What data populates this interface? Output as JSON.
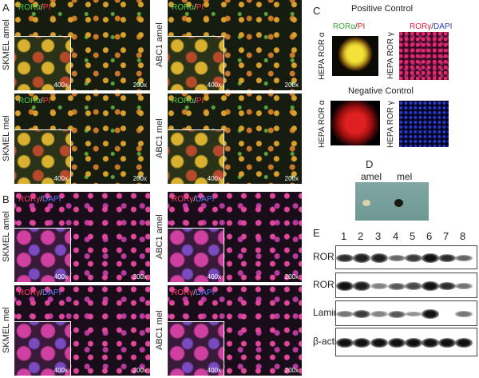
{
  "panel_a": {
    "label": "A",
    "stain": {
      "target": "RORα",
      "separator": "/",
      "counterstain": "PI"
    },
    "inset_magnification": "400x",
    "field_magnification": "200x",
    "images": [
      {
        "label": "SKMEL amel"
      },
      {
        "label": "ABC1 amel"
      },
      {
        "label": "SKMEL mel"
      },
      {
        "label": "ABC1 mel"
      }
    ]
  },
  "panel_b": {
    "label": "B",
    "stain": {
      "target": "RORγ",
      "separator": "/",
      "counterstain": "DAPI"
    },
    "inset_magnification": "400x",
    "field_magnification": "200x",
    "images": [
      {
        "label": "SKMEL amel"
      },
      {
        "label": "ABC1 amel"
      },
      {
        "label": "SKMEL mel"
      },
      {
        "label": "ABC1 mel"
      }
    ]
  },
  "panel_c": {
    "label": "C",
    "positive_title": "Positive Control",
    "negative_title": "Negative Control",
    "stain_alpha": {
      "target": "RORα",
      "separator": "/",
      "counterstain": "PI"
    },
    "stain_gamma": {
      "target": "RORγ",
      "separator": "/",
      "counterstain": "DAPI"
    },
    "row_labels": [
      "HEPA ROR α",
      "HEPA ROR γ"
    ]
  },
  "panel_d": {
    "label": "D",
    "tubes": [
      "amel",
      "mel"
    ]
  },
  "panel_e": {
    "label": "E",
    "lanes": [
      "1",
      "2",
      "3",
      "4",
      "5",
      "6",
      "7",
      "8"
    ],
    "rows": [
      "ROR α",
      "ROR γ",
      "Lamin A",
      "β-actin"
    ]
  }
}
